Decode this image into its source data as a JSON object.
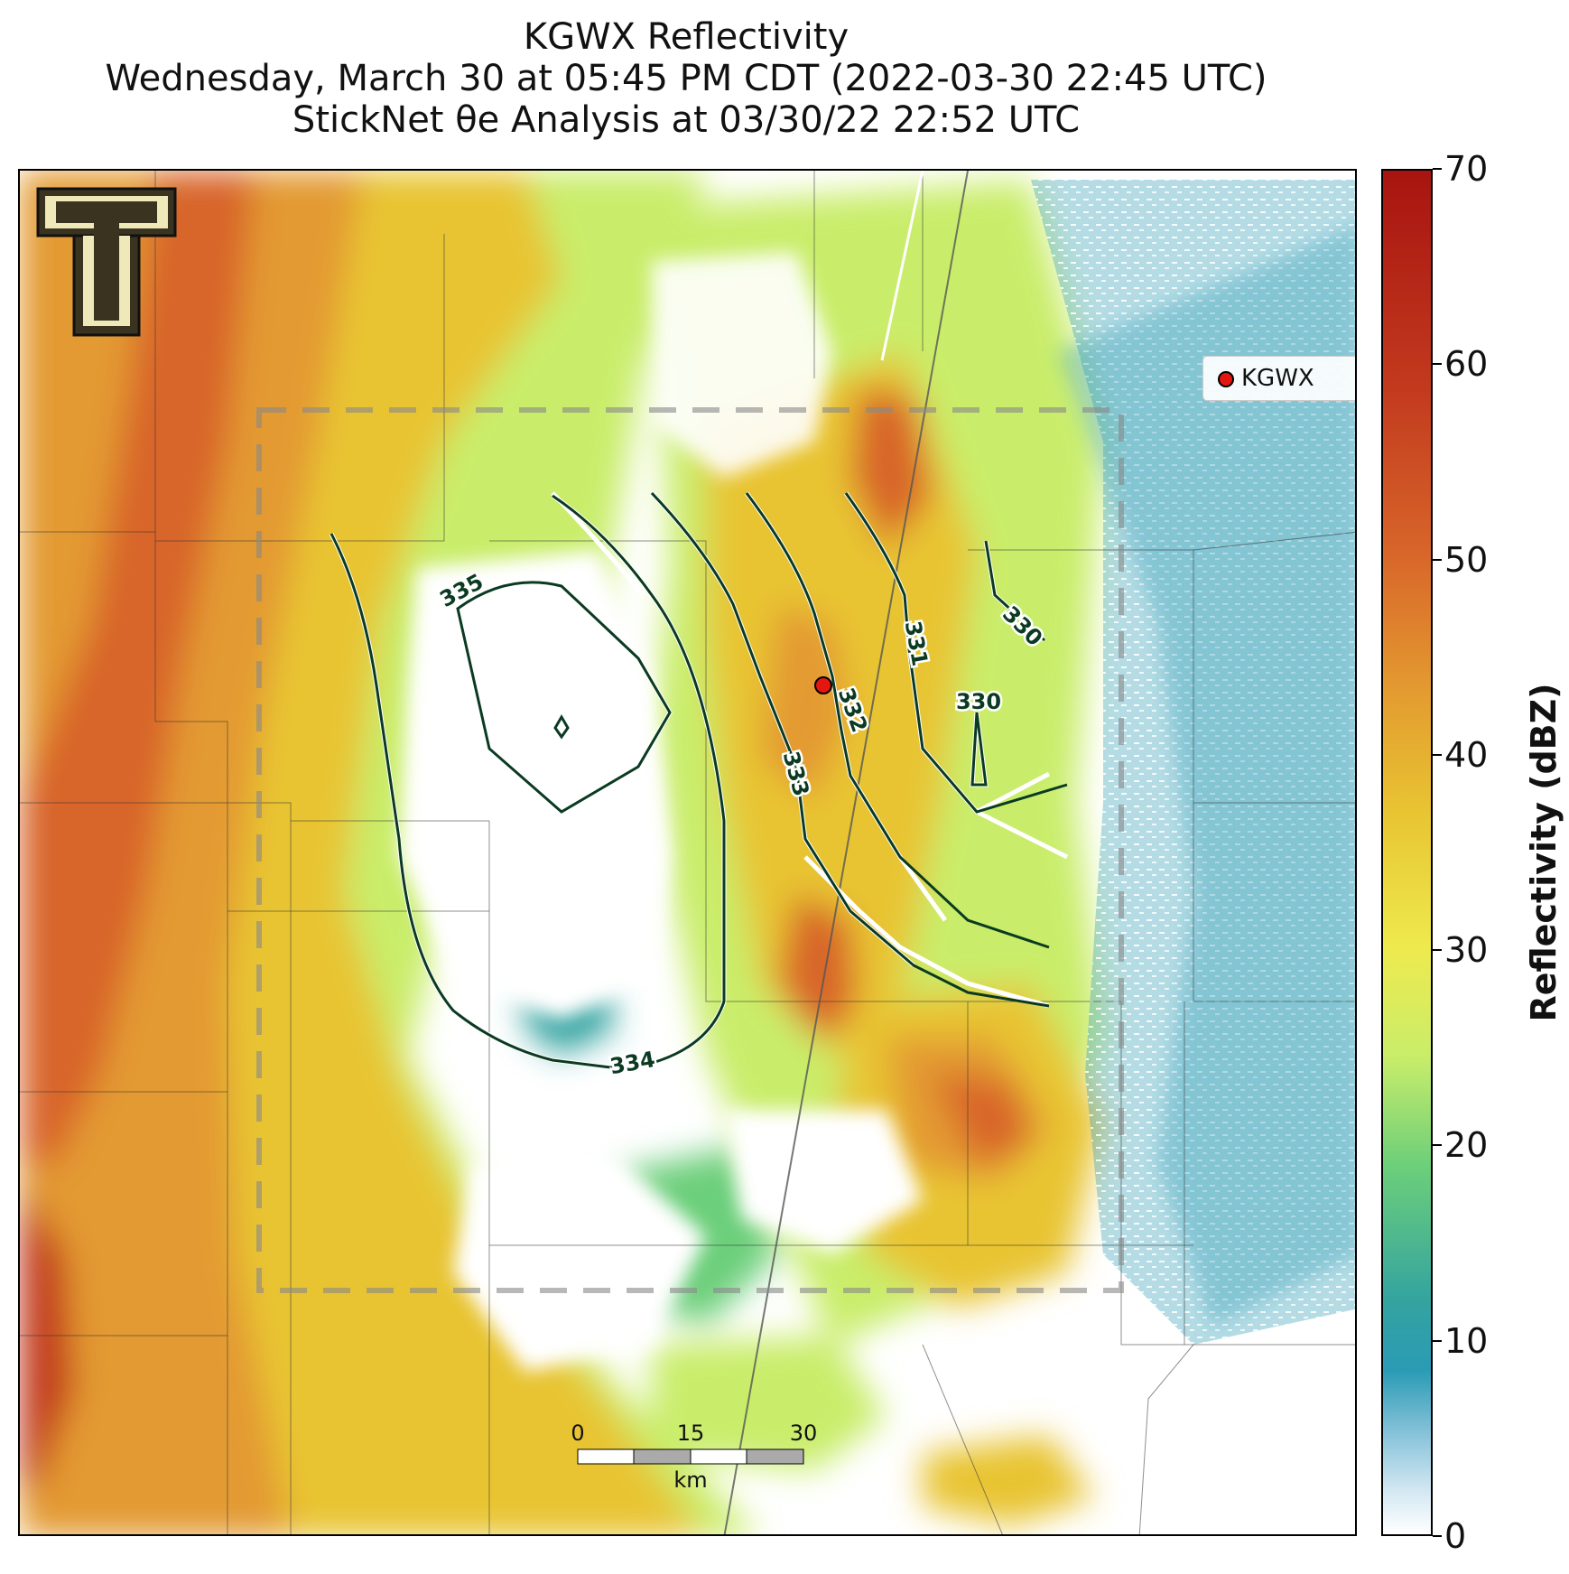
{
  "title": {
    "line1": "KGWX Reflectivity",
    "line2": "Wednesday, March 30 at 05:45 PM CDT (2022-03-30 22:45 UTC)",
    "line3": "StickNet θe Analysis at 03/30/22 22:52 UTC"
  },
  "legend": {
    "label": "KGWX"
  },
  "colorbar": {
    "label": "Reflectivity (dBZ)",
    "ticks": [
      "0",
      "10",
      "20",
      "30",
      "40",
      "50",
      "60",
      "70"
    ],
    "range": [
      0,
      70
    ]
  },
  "contours": {
    "labels": [
      "335",
      "334",
      "333",
      "332",
      "331",
      "330",
      "330"
    ]
  },
  "scalebar": {
    "ticks": [
      "0",
      "15",
      "30"
    ],
    "unit": "km"
  },
  "logo": {
    "text": "T",
    "icon": "texas-tech-double-t-logo"
  },
  "colors": {
    "heavy": "#c23a1e",
    "moderate": "#e8c432",
    "light": "#c9ed6a",
    "trace": "#2b9bb5",
    "contour": "#0b3a22",
    "radar_marker": "#e3170f"
  }
}
